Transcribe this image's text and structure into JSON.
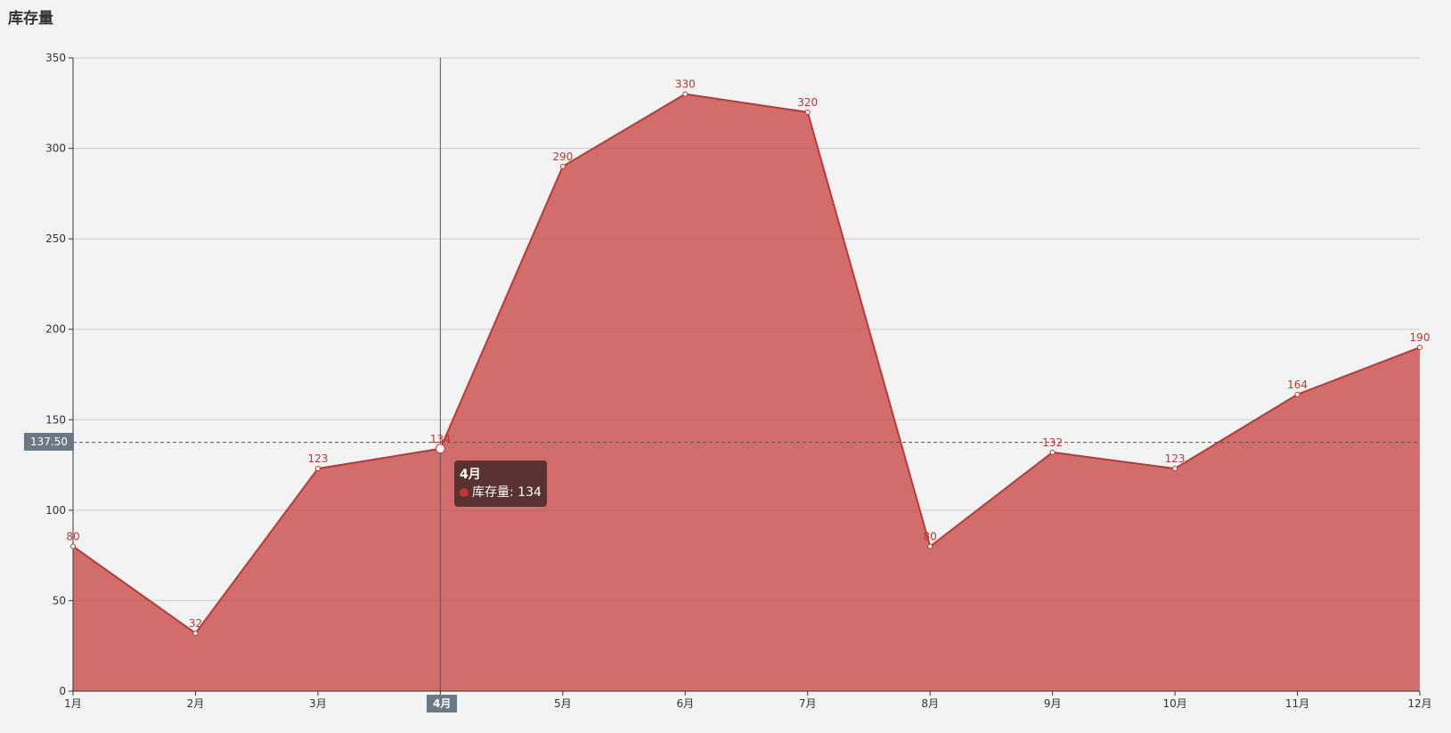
{
  "chart_data": {
    "type": "area",
    "title": "库存量",
    "categories": [
      "1月",
      "2月",
      "3月",
      "4月",
      "5月",
      "6月",
      "7月",
      "8月",
      "9月",
      "10月",
      "11月",
      "12月"
    ],
    "series": [
      {
        "name": "库存量",
        "values": [
          80,
          32,
          123,
          134,
          290,
          330,
          320,
          80,
          132,
          123,
          164,
          190
        ]
      }
    ],
    "ylim": [
      0,
      350
    ],
    "yticks": [
      0,
      50,
      100,
      150,
      200,
      250,
      300,
      350
    ],
    "grid": true,
    "colors": {
      "line": "#c23531",
      "fill": "#c23531",
      "grid": "#cccccc"
    },
    "tooltip": {
      "title": "4月",
      "series_label": "库存量",
      "value": "134",
      "category_index": 3
    },
    "axis_pointer": {
      "y_value": "137.50",
      "x_label": "4月"
    }
  }
}
